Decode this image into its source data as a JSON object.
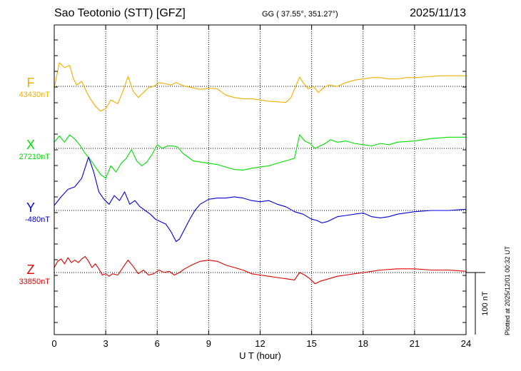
{
  "header": {
    "title": "Sao Teotonio (STT)  [GFZ]",
    "coords": "GG ( 37.55°, 351.27°)",
    "date": "2025/11/13"
  },
  "footer": {
    "plotted": "Plotted at 2025/12/01 00:32 UT"
  },
  "chart_data": {
    "type": "line",
    "title": "Sao Teotonio (STT)  [GFZ]",
    "xlabel": "U T (hour)",
    "ylabel": "",
    "xlim": [
      0,
      24
    ],
    "xticks": [
      0,
      3,
      6,
      9,
      12,
      15,
      18,
      21,
      24
    ],
    "grid": true,
    "scale_bar": {
      "label": "100 nT",
      "value_nT": 100
    },
    "series": [
      {
        "name": "F",
        "baseline": "43430nT",
        "color": "#f0b000",
        "x": [
          0,
          0.3,
          0.6,
          0.9,
          1.1,
          1.3,
          1.6,
          1.9,
          2.1,
          2.4,
          2.7,
          3.0,
          3.3,
          3.7,
          4.0,
          4.3,
          4.6,
          4.9,
          5.2,
          5.5,
          5.8,
          6.1,
          6.5,
          6.8,
          7.1,
          7.5,
          8.0,
          8.5,
          9.0,
          9.5,
          10.0,
          10.5,
          11.0,
          11.5,
          12.0,
          12.5,
          13.0,
          13.5,
          13.8,
          14.1,
          14.3,
          14.5,
          14.8,
          15.1,
          15.4,
          15.7,
          16.0,
          16.5,
          17.0,
          17.5,
          18.0,
          18.5,
          19.0,
          19.5,
          20.0,
          20.5,
          21.0,
          21.5,
          22.0,
          22.5,
          23.0,
          23.5,
          24.0
        ],
        "y": [
          -3,
          38,
          30,
          34,
          14,
          2,
          8,
          -10,
          -20,
          -32,
          -40,
          -36,
          -22,
          -28,
          -8,
          16,
          -8,
          -18,
          -10,
          -2,
          0,
          6,
          4,
          2,
          6,
          1,
          -2,
          -5,
          -3,
          -4,
          -14,
          -18,
          -20,
          -20,
          -22,
          -24,
          -25,
          -26,
          -18,
          2,
          15,
          6,
          -4,
          0,
          -10,
          -2,
          2,
          0,
          6,
          10,
          12,
          14,
          14,
          12,
          12,
          14,
          14,
          15,
          16,
          17,
          17,
          17,
          17
        ]
      },
      {
        "name": "X",
        "baseline": "27210nT",
        "color": "#00e000",
        "x": [
          0,
          0.3,
          0.6,
          0.9,
          1.2,
          1.5,
          1.8,
          2.1,
          2.4,
          2.7,
          3.0,
          3.3,
          3.6,
          3.9,
          4.2,
          4.5,
          4.8,
          5.1,
          5.4,
          5.7,
          6.0,
          6.3,
          6.6,
          6.9,
          7.2,
          7.5,
          7.8,
          8.1,
          8.5,
          9.0,
          9.5,
          10.0,
          10.5,
          11.0,
          11.5,
          12.0,
          12.5,
          13.0,
          13.5,
          14.0,
          14.3,
          14.6,
          14.9,
          15.2,
          15.5,
          15.8,
          16.1,
          16.5,
          17.0,
          17.5,
          18.0,
          18.5,
          19.0,
          19.5,
          20.0,
          21.0,
          22.0,
          23.0,
          24.0
        ],
        "y": [
          10,
          20,
          10,
          22,
          15,
          5,
          -8,
          -18,
          -30,
          -42,
          -48,
          -28,
          -38,
          -24,
          -16,
          -2,
          -20,
          -28,
          -22,
          -10,
          6,
          0,
          4,
          4,
          2,
          -8,
          -14,
          -20,
          -22,
          -24,
          -26,
          -30,
          -34,
          -35,
          -32,
          -30,
          -28,
          -24,
          -20,
          -16,
          22,
          12,
          8,
          0,
          4,
          8,
          14,
          10,
          12,
          8,
          6,
          4,
          8,
          6,
          10,
          12,
          16,
          18,
          18
        ]
      },
      {
        "name": "Y",
        "baseline": "-480nT",
        "color": "#0000e0",
        "x": [
          0,
          0.4,
          0.8,
          1.2,
          1.6,
          2.0,
          2.3,
          2.6,
          2.9,
          3.2,
          3.5,
          3.8,
          4.1,
          4.4,
          4.7,
          5.0,
          5.3,
          5.6,
          5.9,
          6.2,
          6.5,
          6.8,
          7.1,
          7.3,
          7.6,
          7.9,
          8.2,
          8.5,
          9.0,
          9.5,
          10.0,
          10.5,
          11.0,
          11.5,
          12.0,
          12.5,
          13.0,
          13.5,
          14.0,
          14.5,
          15.0,
          15.3,
          15.6,
          15.9,
          16.2,
          16.5,
          17.0,
          17.5,
          18.0,
          18.5,
          19.0,
          19.5,
          20.0,
          21.0,
          22.0,
          23.0,
          24.0
        ],
        "y": [
          8,
          22,
          34,
          38,
          52,
          86,
          62,
          30,
          18,
          10,
          24,
          16,
          30,
          10,
          16,
          6,
          0,
          -6,
          -14,
          -18,
          -22,
          -34,
          -50,
          -46,
          -30,
          -14,
          0,
          10,
          18,
          20,
          20,
          22,
          20,
          16,
          14,
          16,
          10,
          6,
          -2,
          -6,
          -14,
          -16,
          -20,
          -18,
          -14,
          -10,
          -8,
          -6,
          -4,
          -10,
          -12,
          -10,
          -6,
          -2,
          0,
          0,
          2
        ]
      },
      {
        "name": "Z",
        "baseline": "33850nT",
        "color": "#e00000",
        "x": [
          0,
          0.2,
          0.4,
          0.6,
          0.8,
          1.0,
          1.2,
          1.4,
          1.6,
          1.8,
          2.0,
          2.2,
          2.4,
          2.6,
          2.8,
          3.0,
          3.2,
          3.4,
          3.7,
          4.0,
          4.3,
          4.6,
          4.9,
          5.2,
          5.5,
          5.8,
          6.1,
          6.4,
          6.7,
          7.0,
          7.3,
          7.6,
          8.0,
          8.5,
          9.0,
          9.5,
          10.0,
          10.5,
          11.0,
          11.5,
          12.0,
          12.5,
          13.0,
          13.5,
          14.0,
          14.3,
          14.6,
          14.9,
          15.2,
          15.5,
          16.0,
          16.5,
          17.0,
          17.5,
          18.0,
          18.5,
          19.0,
          20.0,
          21.0,
          22.0,
          23.0,
          24.0
        ],
        "y": [
          8,
          18,
          22,
          14,
          24,
          16,
          20,
          16,
          22,
          26,
          18,
          8,
          14,
          6,
          -4,
          -2,
          -6,
          -2,
          -4,
          8,
          20,
          10,
          -2,
          4,
          -4,
          -2,
          4,
          0,
          2,
          -4,
          0,
          6,
          12,
          18,
          20,
          18,
          12,
          8,
          4,
          -2,
          -4,
          -6,
          -8,
          -10,
          -12,
          0,
          -4,
          -10,
          -18,
          -14,
          -10,
          -6,
          -4,
          -2,
          0,
          2,
          4,
          6,
          6,
          4,
          4,
          2
        ]
      }
    ]
  }
}
